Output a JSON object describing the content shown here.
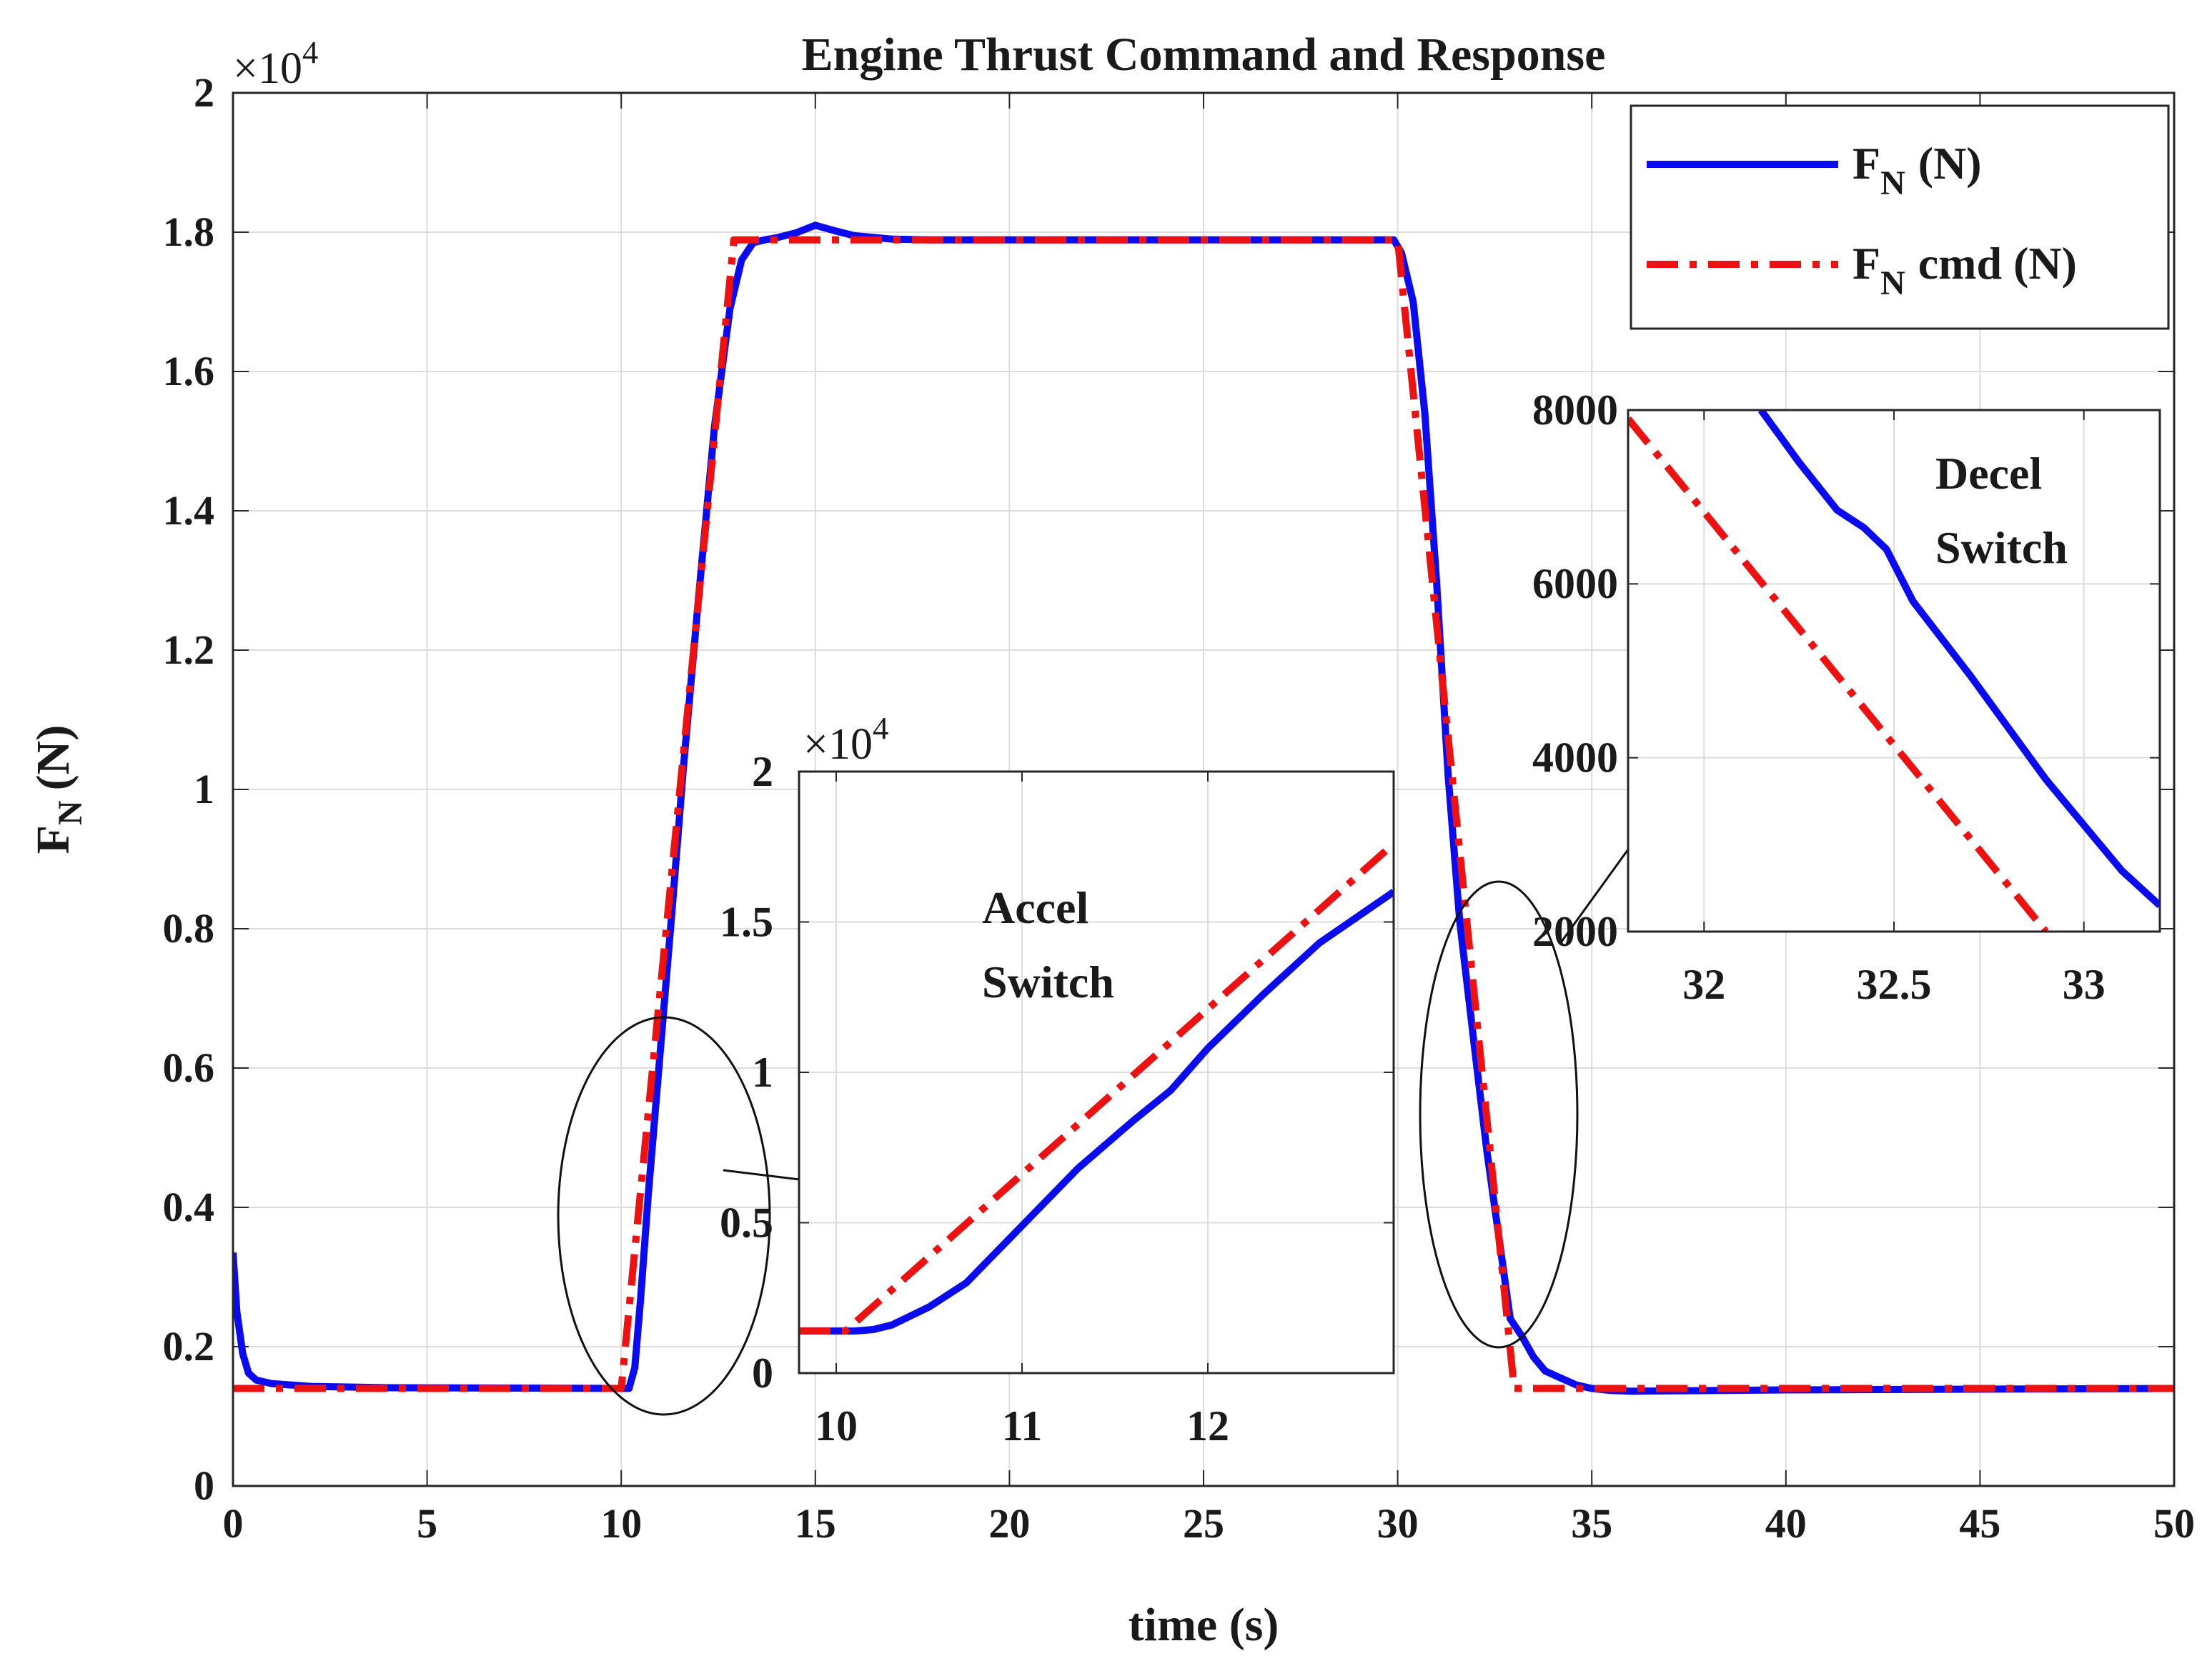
{
  "chart_data": [
    {
      "id": "main",
      "type": "line",
      "title": "Engine Thrust Command and Response",
      "xlabel": "time (s)",
      "ylabel_main": "F",
      "ylabel_sub": "N",
      "ylabel_unit": "(N)",
      "xlim": [
        0,
        50
      ],
      "ylim": [
        0,
        20000
      ],
      "grid": true,
      "y_exponent_base": "×10",
      "y_exponent_power": "4",
      "xticks": [
        0,
        5,
        10,
        15,
        20,
        25,
        30,
        35,
        40,
        45,
        50
      ],
      "xtick_labels": [
        "0",
        "5",
        "10",
        "15",
        "20",
        "25",
        "30",
        "35",
        "40",
        "45",
        "50"
      ],
      "yticks": [
        0,
        2000,
        4000,
        6000,
        8000,
        10000,
        12000,
        14000,
        16000,
        18000,
        20000
      ],
      "ytick_labels": [
        "0",
        "0.2",
        "0.4",
        "0.6",
        "0.8",
        "1",
        "1.2",
        "1.4",
        "1.6",
        "1.8",
        "2"
      ],
      "legend": {
        "placement": "top-right",
        "entries": [
          {
            "main": "F",
            "sub": "N",
            "rest": "(N)",
            "series": "FN"
          },
          {
            "main": "F",
            "sub": "N",
            "rest": "cmd (N)",
            "series": "cmd"
          }
        ]
      },
      "series": [
        {
          "name": "FN (N)",
          "key": "FN",
          "color": "#0b0bf0",
          "style": "solid",
          "x": [
            0,
            0.1,
            0.25,
            0.4,
            0.6,
            1,
            2,
            4,
            10,
            10.2,
            10.35,
            10.5,
            10.7,
            11,
            11.3,
            11.6,
            12,
            12.4,
            12.8,
            13.1,
            13.4,
            13.7,
            14,
            14.5,
            15,
            15.5,
            16,
            17,
            18,
            20,
            25,
            29.9,
            30.1,
            30.4,
            30.7,
            31,
            31.3,
            31.6,
            32,
            32.3,
            32.6,
            32.9,
            33.2,
            33.5,
            33.8,
            34.2,
            34.6,
            35,
            35.5,
            36,
            40,
            50
          ],
          "y": [
            3350,
            2500,
            1900,
            1620,
            1520,
            1470,
            1430,
            1410,
            1400,
            1400,
            1700,
            2700,
            4200,
            6200,
            8200,
            10300,
            12800,
            15200,
            16900,
            17600,
            17850,
            17890,
            17920,
            17990,
            18100,
            18020,
            17950,
            17900,
            17890,
            17890,
            17890,
            17890,
            17700,
            17000,
            15400,
            13000,
            10200,
            8100,
            6200,
            4800,
            3600,
            2400,
            2150,
            1850,
            1650,
            1550,
            1450,
            1400,
            1370,
            1360,
            1380,
            1400
          ]
        },
        {
          "name": "FN cmd (N)",
          "key": "cmd",
          "color": "#ee1111",
          "style": "dashdot",
          "x": [
            0,
            10,
            12.9,
            30,
            33,
            50
          ],
          "y": [
            1400,
            1400,
            17890,
            17890,
            1400,
            1400
          ]
        }
      ],
      "annotations": [
        {
          "type": "ellipse",
          "label": "accel-region"
        },
        {
          "type": "ellipse",
          "label": "decel-region"
        }
      ]
    },
    {
      "id": "inset_accel",
      "type": "line",
      "title": "",
      "annotation_text_line1": "Accel",
      "annotation_text_line2": "Switch",
      "xlim": [
        9.8,
        13
      ],
      "ylim": [
        0,
        20000
      ],
      "grid": true,
      "y_exponent_base": "×10",
      "y_exponent_power": "4",
      "xticks": [
        10,
        11,
        12
      ],
      "xtick_labels": [
        "10",
        "11",
        "12"
      ],
      "yticks": [
        0,
        5000,
        10000,
        15000,
        20000
      ],
      "ytick_labels": [
        "0",
        "0.5",
        "1",
        "1.5",
        "2"
      ],
      "series": [
        {
          "name": "FN (N)",
          "key": "FN",
          "color": "#0b0bf0",
          "style": "solid",
          "x": [
            9.8,
            10.1,
            10.2,
            10.3,
            10.5,
            10.7,
            11,
            11.3,
            11.6,
            11.8,
            12,
            12.3,
            12.6,
            13
          ],
          "y": [
            1400,
            1400,
            1450,
            1600,
            2200,
            3000,
            4900,
            6800,
            8400,
            9400,
            10800,
            12600,
            14300,
            16000
          ]
        },
        {
          "name": "FN cmd (N)",
          "key": "cmd",
          "color": "#ee1111",
          "style": "dashdot",
          "x": [
            9.8,
            10.05,
            13
          ],
          "y": [
            1400,
            1400,
            17600
          ]
        }
      ]
    },
    {
      "id": "inset_decel",
      "type": "line",
      "title": "",
      "annotation_text_line1": "Decel",
      "annotation_text_line2": "Switch",
      "xlim": [
        31.8,
        33.2
      ],
      "ylim": [
        2000,
        8000
      ],
      "grid": true,
      "xticks": [
        32,
        32.5,
        33
      ],
      "xtick_labels": [
        "32",
        "32.5",
        "33"
      ],
      "yticks": [
        2000,
        4000,
        6000,
        8000
      ],
      "ytick_labels": [
        "2000",
        "4000",
        "6000",
        "8000"
      ],
      "series": [
        {
          "name": "FN (N)",
          "key": "FN",
          "color": "#0b0bf0",
          "style": "solid",
          "x": [
            32.15,
            32.25,
            32.35,
            32.42,
            32.48,
            32.55,
            32.7,
            32.9,
            33.1,
            33.2
          ],
          "y": [
            8000,
            7400,
            6850,
            6650,
            6400,
            5800,
            4950,
            3750,
            2700,
            2300
          ]
        },
        {
          "name": "FN cmd (N)",
          "key": "cmd",
          "color": "#ee1111",
          "style": "dashdot",
          "x": [
            31.8,
            32.9
          ],
          "y": [
            7900,
            2000
          ]
        }
      ]
    }
  ]
}
